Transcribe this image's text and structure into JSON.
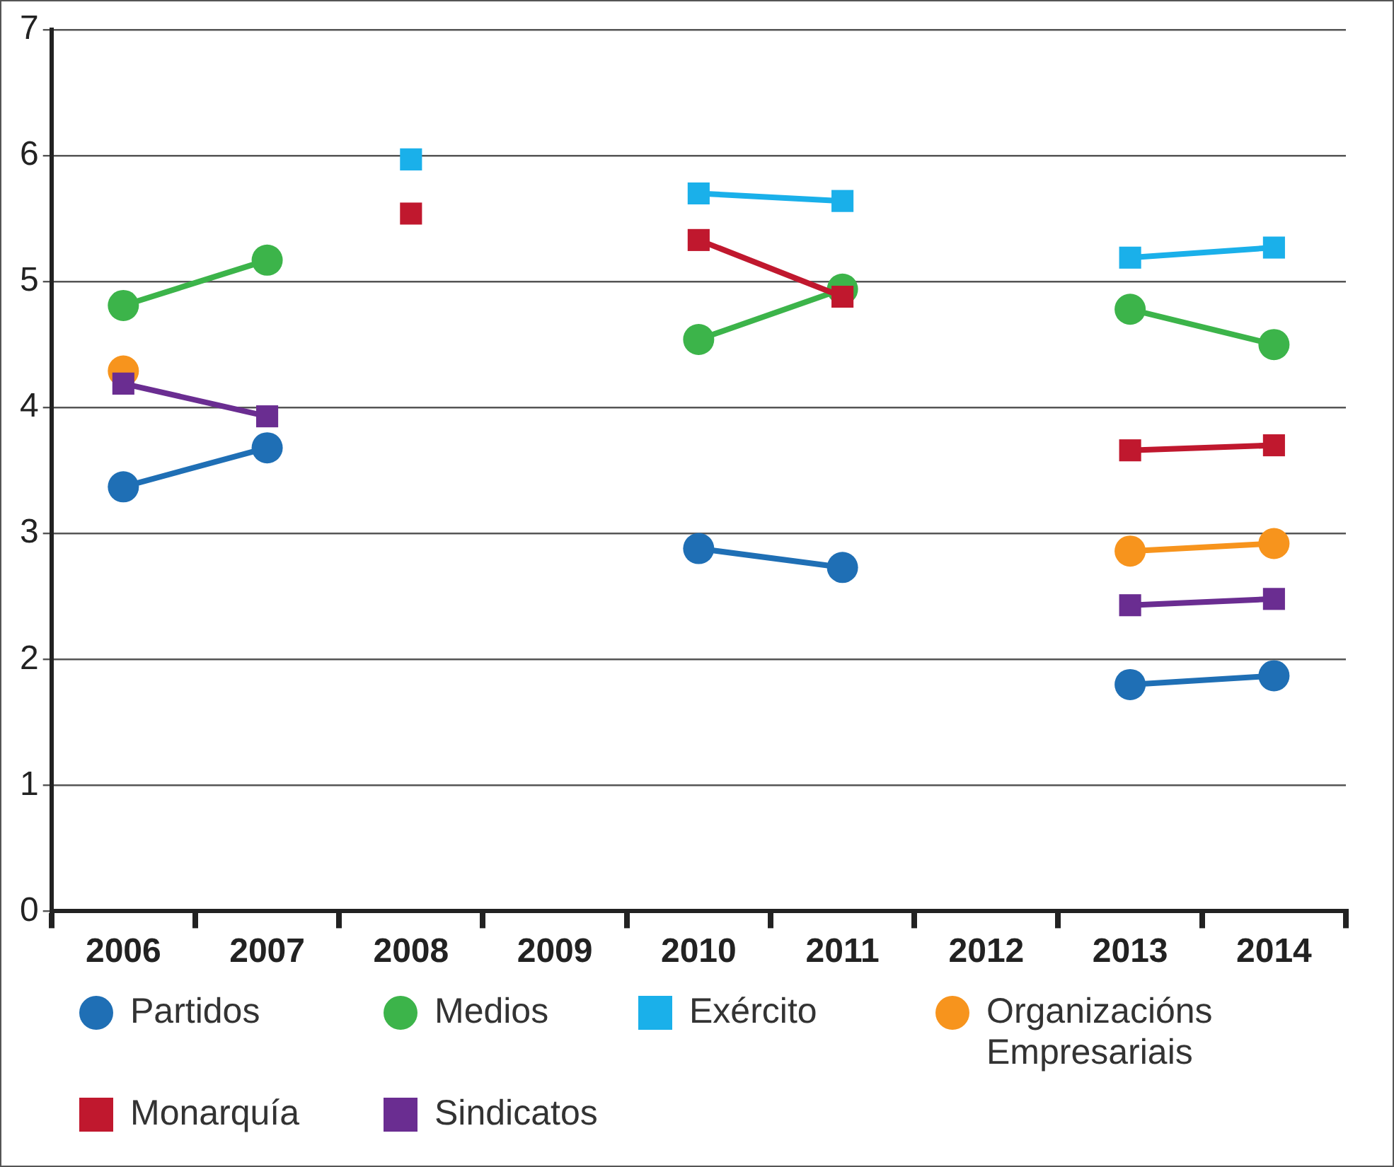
{
  "chart_data": {
    "type": "line",
    "categories": [
      "2006",
      "2007",
      "2008",
      "2009",
      "2010",
      "2011",
      "2012",
      "2013",
      "2014"
    ],
    "series": [
      {
        "name": "Partidos",
        "color": "#1f6fb5",
        "marker": "circle",
        "values": [
          3.37,
          3.68,
          null,
          null,
          2.88,
          2.73,
          null,
          1.8,
          1.87
        ]
      },
      {
        "name": "Medios",
        "color": "#3cb44a",
        "marker": "circle",
        "values": [
          4.81,
          5.17,
          null,
          null,
          4.54,
          4.94,
          null,
          4.78,
          4.5
        ]
      },
      {
        "name": "Exército",
        "color": "#1ab0ea",
        "marker": "square",
        "values": [
          null,
          null,
          5.97,
          null,
          5.7,
          5.64,
          null,
          5.19,
          5.27
        ]
      },
      {
        "name": "Organizacións Empresariais",
        "color": "#f7941d",
        "marker": "circle",
        "values": [
          4.29,
          null,
          null,
          null,
          null,
          null,
          null,
          2.86,
          2.92
        ]
      },
      {
        "name": "Monarquía",
        "color": "#c0182e",
        "marker": "square",
        "values": [
          null,
          null,
          5.54,
          null,
          5.33,
          4.88,
          null,
          3.66,
          3.7
        ]
      },
      {
        "name": "Sindicatos",
        "color": "#6a2d91",
        "marker": "square",
        "values": [
          4.19,
          3.93,
          null,
          null,
          null,
          null,
          null,
          2.43,
          2.48
        ]
      }
    ],
    "ylim": [
      0,
      7
    ],
    "yticks": [
      0,
      1,
      2,
      3,
      4,
      5,
      6,
      7
    ],
    "grid": "y",
    "legend": "bottom",
    "line_style": "solid"
  }
}
